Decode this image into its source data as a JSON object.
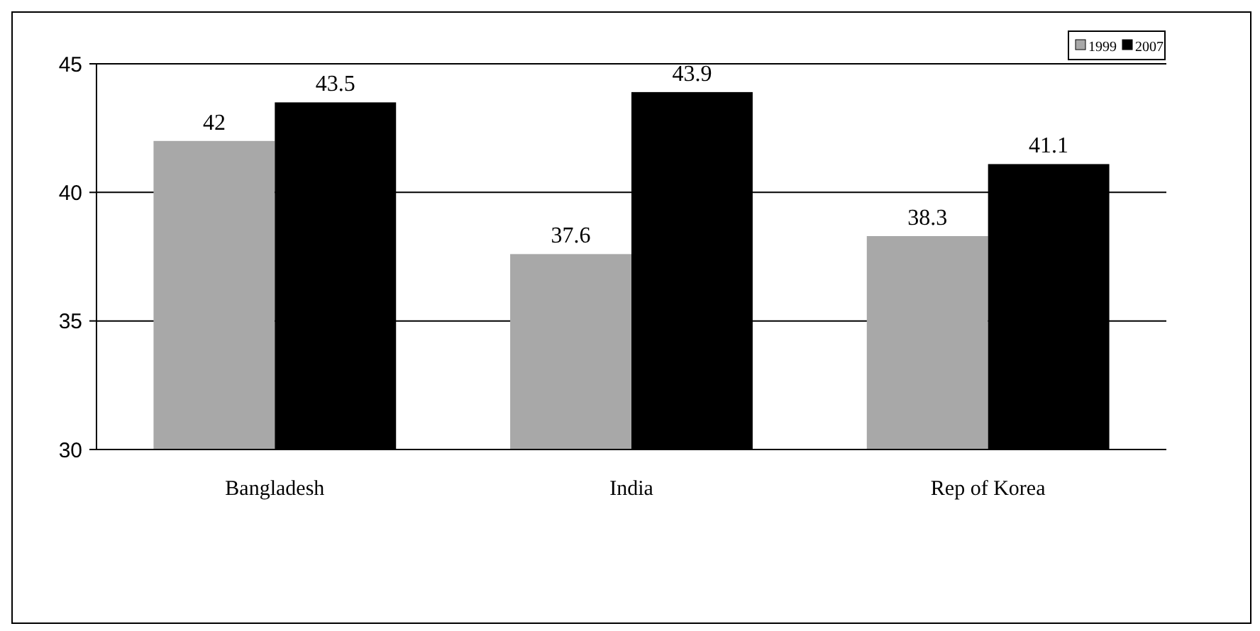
{
  "chart_data": {
    "type": "bar",
    "categories": [
      "Bangladesh",
      "India",
      "Rep of Korea"
    ],
    "series": [
      {
        "name": "1999",
        "color": "#a8a8a8",
        "values": [
          42,
          37.6,
          38.3
        ]
      },
      {
        "name": "2007",
        "color": "#000000",
        "values": [
          43.5,
          43.9,
          41.1
        ]
      }
    ],
    "ylim": [
      30,
      45
    ],
    "yticks": [
      30,
      35,
      40,
      45
    ],
    "grid": "y",
    "legend": "top right",
    "data_labels": true
  }
}
